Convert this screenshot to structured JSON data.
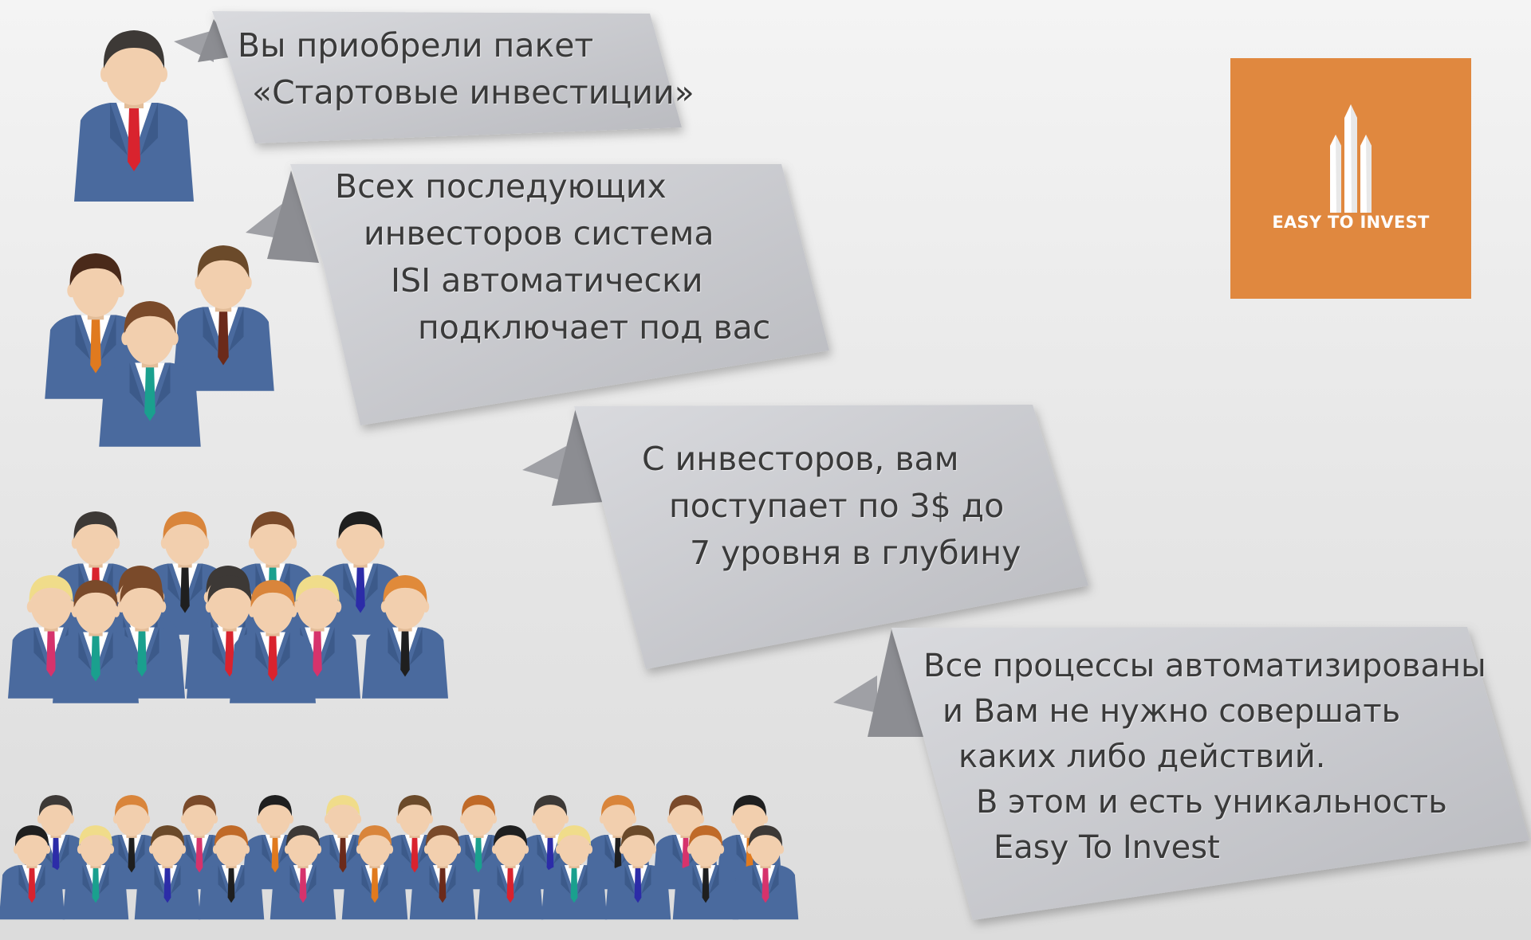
{
  "banners": [
    {
      "lines": [
        "Вы приобрели пакет",
        "«Стартовые инвестиции»"
      ]
    },
    {
      "lines": [
        "Всех последующих",
        "инвесторов система",
        "ISI автоматически",
        "подключает под вас"
      ]
    },
    {
      "lines": [
        "С инвесторов, вам",
        "поступает по 3$ до",
        "7 уровня в глубину"
      ]
    },
    {
      "lines": [
        "Все процессы автоматизированы",
        "и Вам не нужно совершать",
        "каких либо действий.",
        "В этом и есть уникальность",
        "Easy To Invest"
      ]
    }
  ],
  "logo": {
    "text": "EASY TO INVEST",
    "color": "#e0883f"
  },
  "people_groups": [
    {
      "count": 1
    },
    {
      "count": 3
    },
    {
      "count": 13
    },
    {
      "count": 29
    }
  ],
  "colors": {
    "suit": "#4a6a9e",
    "skin": "#f2cfae",
    "ribbon": "#c5c6cb",
    "text": "#3a3a3a"
  }
}
